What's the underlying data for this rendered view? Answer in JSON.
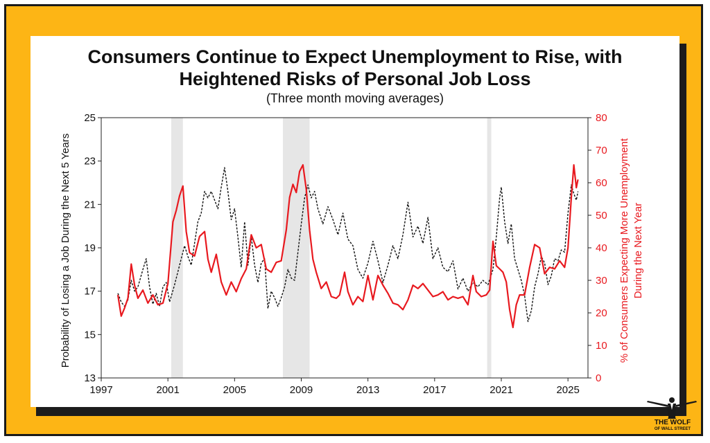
{
  "chart_data": {
    "type": "line",
    "title": [
      "Consumers Continue to Expect Unemployment to Rise, with",
      "Heightened Risks of Personal Job Loss"
    ],
    "subtitle": "(Three month moving averages)",
    "xlabel": "",
    "x_ticks": [
      "1997",
      "2001",
      "2005",
      "2009",
      "2013",
      "2017",
      "2021",
      "2025"
    ],
    "x_range": [
      1997,
      2026.2
    ],
    "y_left": {
      "label": "Probability of Losing a Job During the Next 5 Years",
      "range": [
        13,
        25
      ],
      "ticks": [
        "13",
        "15",
        "17",
        "19",
        "21",
        "23",
        "25"
      ]
    },
    "y_right": {
      "label": [
        "% of Consumers Expecting More Unemployment",
        "During the Next Year"
      ],
      "range": [
        0,
        80
      ],
      "ticks": [
        "0",
        "10",
        "20",
        "30",
        "40",
        "50",
        "60",
        "70",
        "80"
      ],
      "color": "#e8191f"
    },
    "recessions": [
      [
        2001.2,
        2001.9
      ],
      [
        2007.9,
        2009.5
      ],
      [
        2020.15,
        2020.4
      ]
    ],
    "grid": false,
    "series": [
      {
        "axis": "left",
        "style": "dashed",
        "color": "#111111",
        "points": [
          [
            1998.0,
            16.9
          ],
          [
            1998.2,
            16.5
          ],
          [
            1998.4,
            16.3
          ],
          [
            1998.6,
            16.6
          ],
          [
            1998.8,
            17.5
          ],
          [
            1999.0,
            17.0
          ],
          [
            1999.2,
            17.2
          ],
          [
            1999.5,
            18.0
          ],
          [
            1999.7,
            18.5
          ],
          [
            1999.9,
            17.2
          ],
          [
            2000.1,
            16.4
          ],
          [
            2000.3,
            16.9
          ],
          [
            2000.5,
            16.3
          ],
          [
            2000.7,
            17.2
          ],
          [
            2000.9,
            17.4
          ],
          [
            2001.1,
            16.5
          ],
          [
            2001.4,
            17.3
          ],
          [
            2001.7,
            18.2
          ],
          [
            2002.0,
            19.1
          ],
          [
            2002.2,
            18.6
          ],
          [
            2002.4,
            18.2
          ],
          [
            2002.6,
            19.2
          ],
          [
            2002.8,
            20.2
          ],
          [
            2003.0,
            20.6
          ],
          [
            2003.2,
            21.6
          ],
          [
            2003.4,
            21.3
          ],
          [
            2003.6,
            21.6
          ],
          [
            2003.8,
            21.2
          ],
          [
            2004.0,
            20.8
          ],
          [
            2004.2,
            21.8
          ],
          [
            2004.4,
            22.7
          ],
          [
            2004.6,
            21.6
          ],
          [
            2004.8,
            20.3
          ],
          [
            2005.0,
            20.8
          ],
          [
            2005.2,
            19.5
          ],
          [
            2005.4,
            18.1
          ],
          [
            2005.6,
            20.2
          ],
          [
            2005.8,
            18.2
          ],
          [
            2006.0,
            19.5
          ],
          [
            2006.2,
            18.2
          ],
          [
            2006.4,
            17.4
          ],
          [
            2006.6,
            18.3
          ],
          [
            2006.8,
            18.5
          ],
          [
            2007.0,
            16.2
          ],
          [
            2007.2,
            17.0
          ],
          [
            2007.4,
            16.7
          ],
          [
            2007.6,
            16.3
          ],
          [
            2007.8,
            16.7
          ],
          [
            2008.0,
            17.2
          ],
          [
            2008.2,
            18.0
          ],
          [
            2008.4,
            17.6
          ],
          [
            2008.6,
            17.5
          ],
          [
            2008.8,
            18.8
          ],
          [
            2009.0,
            20.1
          ],
          [
            2009.2,
            21.3
          ],
          [
            2009.4,
            21.9
          ],
          [
            2009.6,
            21.3
          ],
          [
            2009.8,
            21.6
          ],
          [
            2010.0,
            20.8
          ],
          [
            2010.3,
            20.1
          ],
          [
            2010.6,
            20.9
          ],
          [
            2010.9,
            20.3
          ],
          [
            2011.2,
            19.6
          ],
          [
            2011.5,
            20.6
          ],
          [
            2011.8,
            19.4
          ],
          [
            2012.1,
            19.1
          ],
          [
            2012.4,
            18.0
          ],
          [
            2012.7,
            17.6
          ],
          [
            2013.0,
            18.3
          ],
          [
            2013.3,
            19.3
          ],
          [
            2013.6,
            18.4
          ],
          [
            2013.9,
            17.4
          ],
          [
            2014.2,
            18.2
          ],
          [
            2014.5,
            19.1
          ],
          [
            2014.8,
            18.5
          ],
          [
            2015.1,
            19.6
          ],
          [
            2015.4,
            21.1
          ],
          [
            2015.7,
            19.5
          ],
          [
            2016.0,
            20.0
          ],
          [
            2016.3,
            19.2
          ],
          [
            2016.6,
            20.4
          ],
          [
            2016.9,
            18.5
          ],
          [
            2017.2,
            19.0
          ],
          [
            2017.5,
            18.1
          ],
          [
            2017.8,
            17.9
          ],
          [
            2018.1,
            18.4
          ],
          [
            2018.4,
            17.1
          ],
          [
            2018.7,
            17.6
          ],
          [
            2019.0,
            17.0
          ],
          [
            2019.3,
            17.4
          ],
          [
            2019.6,
            17.2
          ],
          [
            2019.9,
            17.5
          ],
          [
            2020.2,
            17.3
          ],
          [
            2020.5,
            18.0
          ],
          [
            2020.7,
            19.5
          ],
          [
            2020.9,
            21.3
          ],
          [
            2021.0,
            21.8
          ],
          [
            2021.2,
            20.2
          ],
          [
            2021.4,
            19.2
          ],
          [
            2021.6,
            20.1
          ],
          [
            2021.8,
            18.5
          ],
          [
            2022.0,
            18.0
          ],
          [
            2022.2,
            17.5
          ],
          [
            2022.4,
            16.8
          ],
          [
            2022.6,
            15.6
          ],
          [
            2022.8,
            16.1
          ],
          [
            2023.0,
            17.2
          ],
          [
            2023.2,
            17.8
          ],
          [
            2023.4,
            18.6
          ],
          [
            2023.6,
            18.3
          ],
          [
            2023.8,
            17.3
          ],
          [
            2024.0,
            17.7
          ],
          [
            2024.2,
            18.5
          ],
          [
            2024.4,
            18.4
          ],
          [
            2024.6,
            18.9
          ],
          [
            2024.8,
            18.8
          ],
          [
            2025.0,
            20.6
          ],
          [
            2025.2,
            21.9
          ],
          [
            2025.35,
            21.5
          ],
          [
            2025.5,
            21.2
          ],
          [
            2025.6,
            21.6
          ]
        ]
      },
      {
        "axis": "right",
        "style": "solid",
        "color": "#e8191f",
        "points": [
          [
            1998.0,
            25.5
          ],
          [
            1998.2,
            19.0
          ],
          [
            1998.4,
            21.5
          ],
          [
            1998.6,
            24.5
          ],
          [
            1998.8,
            35.0
          ],
          [
            1999.0,
            28.5
          ],
          [
            1999.2,
            24.5
          ],
          [
            1999.5,
            27.0
          ],
          [
            1999.8,
            23.0
          ],
          [
            2000.1,
            25.5
          ],
          [
            2000.4,
            22.5
          ],
          [
            2000.7,
            23.0
          ],
          [
            2001.0,
            29.0
          ],
          [
            2001.3,
            48.0
          ],
          [
            2001.5,
            51.5
          ],
          [
            2001.7,
            56.0
          ],
          [
            2001.9,
            59.0
          ],
          [
            2002.1,
            45.0
          ],
          [
            2002.3,
            38.5
          ],
          [
            2002.6,
            37.5
          ],
          [
            2002.9,
            43.5
          ],
          [
            2003.2,
            45.0
          ],
          [
            2003.4,
            36.5
          ],
          [
            2003.6,
            32.5
          ],
          [
            2003.9,
            38.0
          ],
          [
            2004.2,
            29.5
          ],
          [
            2004.5,
            25.5
          ],
          [
            2004.8,
            29.5
          ],
          [
            2005.1,
            26.5
          ],
          [
            2005.4,
            30.5
          ],
          [
            2005.7,
            33.5
          ],
          [
            2006.0,
            44.0
          ],
          [
            2006.3,
            40.0
          ],
          [
            2006.6,
            41.0
          ],
          [
            2006.9,
            33.5
          ],
          [
            2007.2,
            32.5
          ],
          [
            2007.5,
            35.5
          ],
          [
            2007.8,
            36.0
          ],
          [
            2008.1,
            45.5
          ],
          [
            2008.3,
            55.5
          ],
          [
            2008.5,
            59.5
          ],
          [
            2008.7,
            57.0
          ],
          [
            2008.9,
            63.5
          ],
          [
            2009.1,
            65.5
          ],
          [
            2009.3,
            58.0
          ],
          [
            2009.5,
            45.5
          ],
          [
            2009.7,
            36.5
          ],
          [
            2009.9,
            32.5
          ],
          [
            2010.2,
            27.5
          ],
          [
            2010.5,
            29.5
          ],
          [
            2010.8,
            25.0
          ],
          [
            2011.1,
            24.5
          ],
          [
            2011.3,
            25.5
          ],
          [
            2011.6,
            32.5
          ],
          [
            2011.8,
            26.5
          ],
          [
            2012.1,
            22.5
          ],
          [
            2012.4,
            25.0
          ],
          [
            2012.7,
            23.5
          ],
          [
            2013.0,
            31.5
          ],
          [
            2013.3,
            24.0
          ],
          [
            2013.6,
            31.5
          ],
          [
            2013.9,
            28.5
          ],
          [
            2014.2,
            26.0
          ],
          [
            2014.5,
            23.0
          ],
          [
            2014.8,
            22.5
          ],
          [
            2015.1,
            21.0
          ],
          [
            2015.4,
            24.0
          ],
          [
            2015.7,
            28.5
          ],
          [
            2016.0,
            27.5
          ],
          [
            2016.3,
            29.0
          ],
          [
            2016.6,
            27.0
          ],
          [
            2016.9,
            25.0
          ],
          [
            2017.2,
            25.5
          ],
          [
            2017.5,
            26.5
          ],
          [
            2017.8,
            24.0
          ],
          [
            2018.1,
            25.0
          ],
          [
            2018.4,
            24.5
          ],
          [
            2018.7,
            25.0
          ],
          [
            2019.0,
            22.5
          ],
          [
            2019.3,
            31.5
          ],
          [
            2019.5,
            26.5
          ],
          [
            2019.8,
            25.0
          ],
          [
            2020.1,
            25.5
          ],
          [
            2020.3,
            27.0
          ],
          [
            2020.5,
            42.0
          ],
          [
            2020.7,
            34.5
          ],
          [
            2020.9,
            33.5
          ],
          [
            2021.1,
            32.5
          ],
          [
            2021.3,
            29.5
          ],
          [
            2021.5,
            21.0
          ],
          [
            2021.7,
            15.5
          ],
          [
            2021.9,
            22.5
          ],
          [
            2022.1,
            25.5
          ],
          [
            2022.4,
            25.5
          ],
          [
            2022.7,
            34.0
          ],
          [
            2023.0,
            41.0
          ],
          [
            2023.3,
            40.0
          ],
          [
            2023.6,
            32.0
          ],
          [
            2023.9,
            34.0
          ],
          [
            2024.2,
            33.5
          ],
          [
            2024.5,
            36.0
          ],
          [
            2024.8,
            34.0
          ],
          [
            2025.0,
            40.0
          ],
          [
            2025.2,
            55.5
          ],
          [
            2025.35,
            65.5
          ],
          [
            2025.5,
            58.5
          ],
          [
            2025.6,
            61.0
          ]
        ]
      }
    ]
  },
  "logo": {
    "line1": "THE WOLF",
    "line2": "OF WALL STREET"
  }
}
